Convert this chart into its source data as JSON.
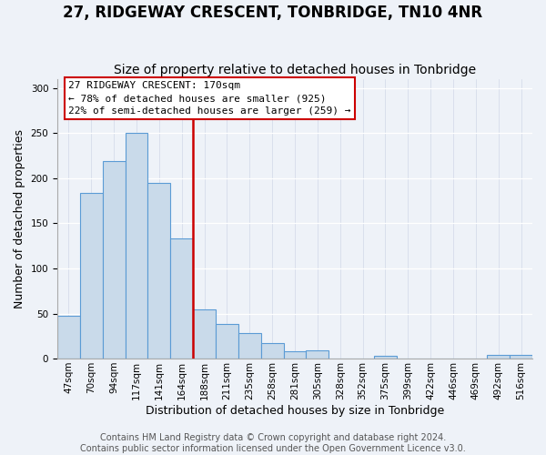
{
  "title": "27, RIDGEWAY CRESCENT, TONBRIDGE, TN10 4NR",
  "subtitle": "Size of property relative to detached houses in Tonbridge",
  "xlabel": "Distribution of detached houses by size in Tonbridge",
  "ylabel": "Number of detached properties",
  "bar_labels": [
    "47sqm",
    "70sqm",
    "94sqm",
    "117sqm",
    "141sqm",
    "164sqm",
    "188sqm",
    "211sqm",
    "235sqm",
    "258sqm",
    "281sqm",
    "305sqm",
    "328sqm",
    "352sqm",
    "375sqm",
    "399sqm",
    "422sqm",
    "446sqm",
    "469sqm",
    "492sqm",
    "516sqm"
  ],
  "bar_values": [
    47,
    184,
    219,
    250,
    195,
    133,
    55,
    38,
    28,
    17,
    8,
    9,
    0,
    0,
    3,
    0,
    0,
    0,
    0,
    4,
    4
  ],
  "bar_color": "#c9daea",
  "bar_edge_color": "#5b9bd5",
  "vline_color": "#cc0000",
  "vline_x": 5.5,
  "annotation_lines": [
    "27 RIDGEWAY CRESCENT: 170sqm",
    "← 78% of detached houses are smaller (925)",
    "22% of semi-detached houses are larger (259) →"
  ],
  "ylim": [
    0,
    310
  ],
  "footer": "Contains HM Land Registry data © Crown copyright and database right 2024.\nContains public sector information licensed under the Open Government Licence v3.0.",
  "title_fontsize": 12,
  "subtitle_fontsize": 10,
  "label_fontsize": 9,
  "tick_fontsize": 7.5,
  "footer_fontsize": 7,
  "background_color": "#eef2f8"
}
